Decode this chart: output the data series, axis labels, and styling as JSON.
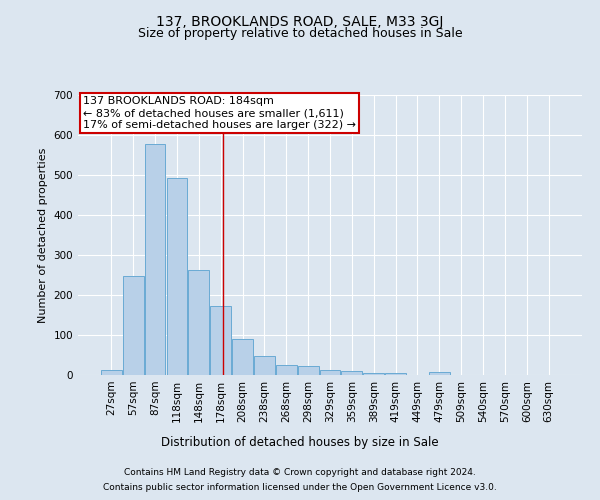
{
  "title1": "137, BROOKLANDS ROAD, SALE, M33 3GJ",
  "title2": "Size of property relative to detached houses in Sale",
  "xlabel": "Distribution of detached houses by size in Sale",
  "ylabel": "Number of detached properties",
  "bar_labels": [
    "27sqm",
    "57sqm",
    "87sqm",
    "118sqm",
    "148sqm",
    "178sqm",
    "208sqm",
    "238sqm",
    "268sqm",
    "298sqm",
    "329sqm",
    "359sqm",
    "389sqm",
    "419sqm",
    "449sqm",
    "479sqm",
    "509sqm",
    "540sqm",
    "570sqm",
    "600sqm",
    "630sqm"
  ],
  "bar_heights": [
    12,
    247,
    577,
    492,
    263,
    172,
    90,
    47,
    26,
    22,
    13,
    10,
    6,
    5,
    0,
    8,
    0,
    0,
    0,
    0,
    0
  ],
  "bar_color": "#b8d0e8",
  "bar_edge_color": "#6aaad4",
  "vline_x_index": 5.13,
  "annotation_text": "137 BROOKLANDS ROAD: 184sqm\n← 83% of detached houses are smaller (1,611)\n17% of semi-detached houses are larger (322) →",
  "annotation_box_color": "#ffffff",
  "annotation_box_edge_color": "#cc0000",
  "vline_color": "#cc0000",
  "ylim": [
    0,
    700
  ],
  "yticks": [
    0,
    100,
    200,
    300,
    400,
    500,
    600,
    700
  ],
  "bg_color": "#dce6f0",
  "plot_bg_color": "#dce6f0",
  "footer1": "Contains HM Land Registry data © Crown copyright and database right 2024.",
  "footer2": "Contains public sector information licensed under the Open Government Licence v3.0.",
  "title1_fontsize": 10,
  "title2_fontsize": 9,
  "xlabel_fontsize": 8.5,
  "ylabel_fontsize": 8,
  "tick_fontsize": 7.5,
  "annotation_fontsize": 8,
  "footer_fontsize": 6.5
}
